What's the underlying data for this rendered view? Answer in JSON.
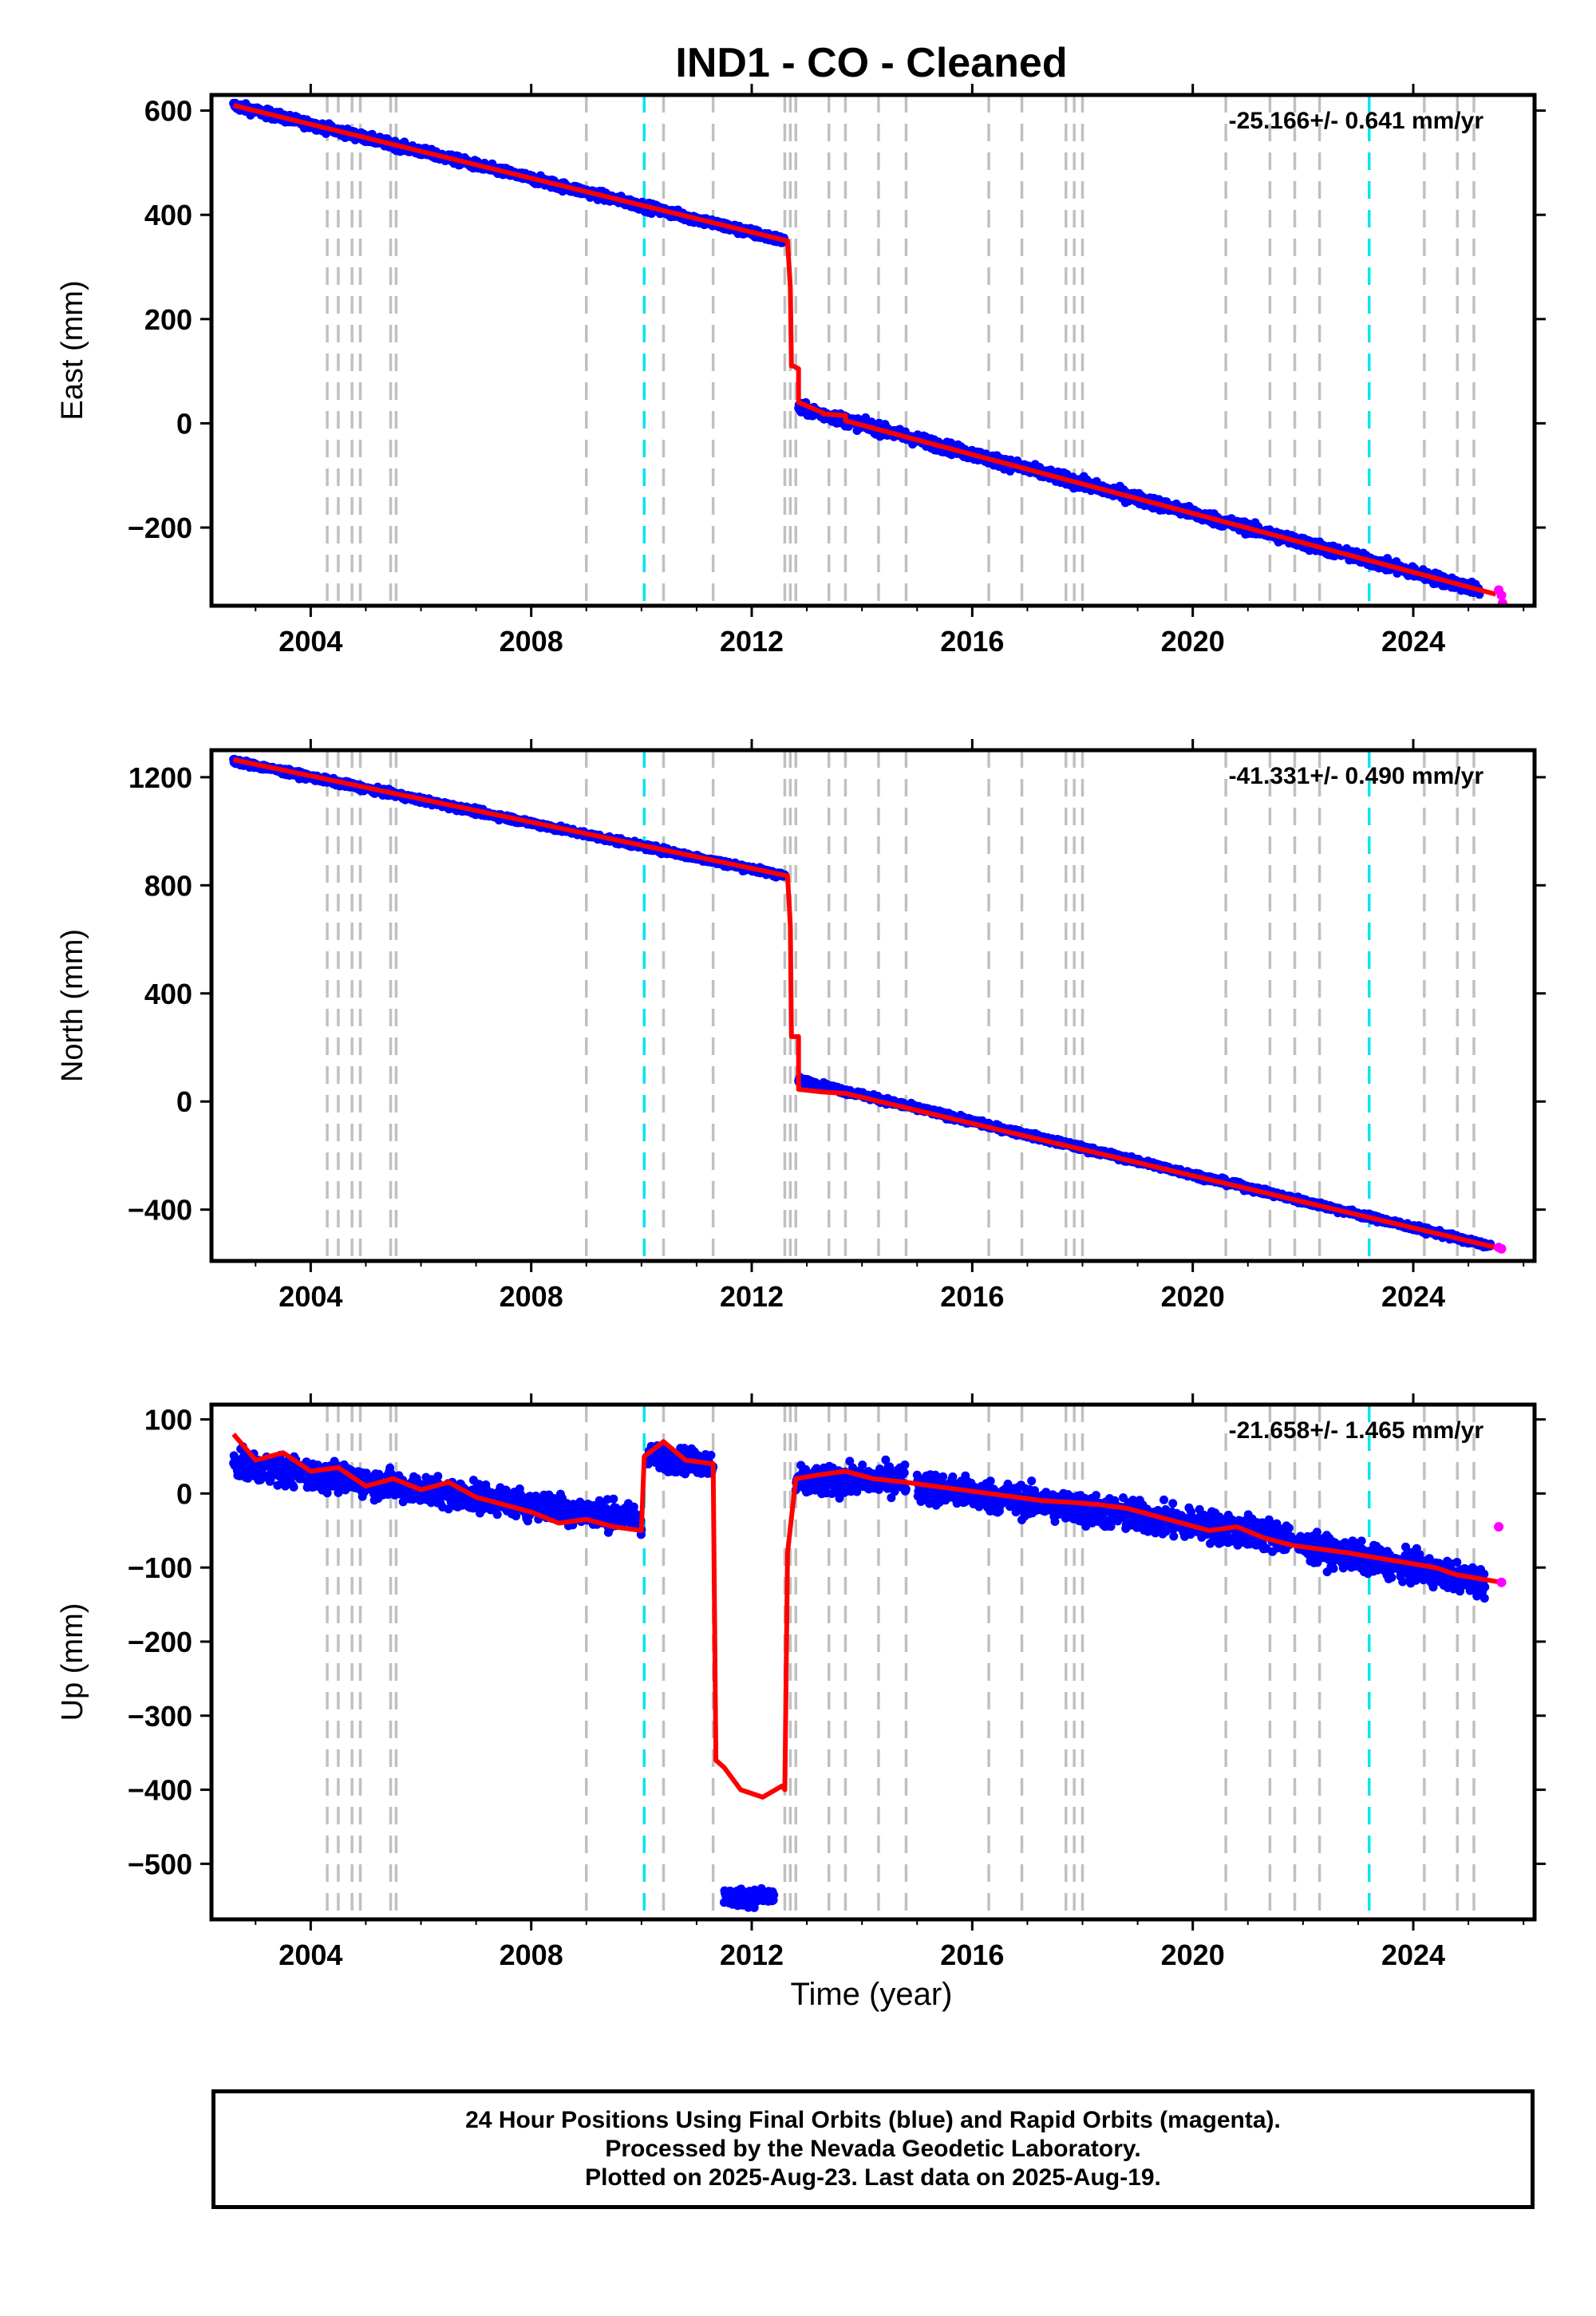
{
  "title": "IND1  - CO - Cleaned",
  "xlabel": "Time (year)",
  "footer": {
    "line1": "24 Hour Positions Using Final Orbits (blue) and Rapid Orbits (magenta).",
    "line2": "Processed by the Nevada Geodetic Laboratory.",
    "line3": "Plotted on 2025-Aug-23. Last data on 2025-Aug-19."
  },
  "colors": {
    "final_orbits": "#0000ff",
    "rapid_orbits": "#ff00ff",
    "model": "#ff0000",
    "steps_gray": "#c0c0c0",
    "steps_cyan": "#00e5ee"
  },
  "chart_data": [
    {
      "type": "scatter",
      "name": "east",
      "ylabel": "East (mm)",
      "rate_label": "-25.166+/- 0.641 mm/yr",
      "xlim": [
        2002.2,
        2026.2
      ],
      "ylim": [
        -350,
        630
      ],
      "xticks": [
        2004,
        2008,
        2012,
        2016,
        2020,
        2024
      ],
      "yticks": [
        -200,
        0,
        200,
        400,
        600
      ],
      "ytick_labels": [
        "−200",
        "0",
        "200",
        "400",
        "600"
      ],
      "gray_steps": [
        2004.3,
        2004.5,
        2004.75,
        2004.9,
        2005.45,
        2005.55,
        2009.0,
        2010.4,
        2011.3,
        2012.6,
        2012.7,
        2012.8,
        2013.4,
        2013.7,
        2014.3,
        2014.8,
        2016.3,
        2016.9,
        2017.7,
        2017.85,
        2018.0,
        2020.6,
        2021.4,
        2021.85,
        2022.3,
        2024.2,
        2024.8,
        2025.1
      ],
      "cyan_steps": [
        2010.05,
        2023.2
      ],
      "segments": [
        {
          "x0": 2002.6,
          "x1": 2012.6,
          "y0": 610,
          "y1": 350,
          "noise": 7
        },
        {
          "x0": 2012.85,
          "x1": 2025.2,
          "y0": 30,
          "y1": -320,
          "noise": 9
        }
      ],
      "model_line": {
        "x": [
          2002.6,
          2012.65,
          2012.65,
          2012.7,
          2012.72,
          2012.75,
          2012.75,
          2012.85,
          2012.85,
          2013.3,
          2013.3,
          2013.7,
          2013.7,
          2025.5
        ],
        "y": [
          610,
          350,
          350,
          260,
          110,
          110,
          110,
          105,
          40,
          20,
          18,
          15,
          5,
          -328
        ]
      },
      "rapid": {
        "x": [
          2025.55,
          2025.6,
          2025.62
        ],
        "y": [
          -320,
          -330,
          -345
        ]
      }
    },
    {
      "type": "scatter",
      "name": "north",
      "ylabel": "North (mm)",
      "rate_label": "-41.331+/- 0.490 mm/yr",
      "xlim": [
        2002.2,
        2026.2
      ],
      "ylim": [
        -590,
        1300
      ],
      "xticks": [
        2004,
        2008,
        2012,
        2016,
        2020,
        2024
      ],
      "yticks": [
        -400,
        0,
        400,
        800,
        1200
      ],
      "ytick_labels": [
        "−400",
        "0",
        "400",
        "800",
        "1200"
      ],
      "gray_steps": [
        2004.3,
        2004.5,
        2004.75,
        2004.9,
        2005.45,
        2005.55,
        2009.0,
        2010.4,
        2011.3,
        2012.6,
        2012.7,
        2012.8,
        2013.4,
        2013.7,
        2014.3,
        2014.8,
        2016.3,
        2016.9,
        2017.7,
        2017.85,
        2018.0,
        2020.6,
        2021.4,
        2021.85,
        2022.3,
        2024.2,
        2024.8,
        2025.1
      ],
      "cyan_steps": [
        2010.05,
        2023.2
      ],
      "segments": [
        {
          "x0": 2002.6,
          "x1": 2012.6,
          "y0": 1260,
          "y1": 835,
          "noise": 9
        },
        {
          "x0": 2012.85,
          "x1": 2025.4,
          "y0": 80,
          "y1": -535,
          "noise": 9
        }
      ],
      "model_line": {
        "x": [
          2002.6,
          2012.65,
          2012.65,
          2012.7,
          2012.72,
          2012.75,
          2012.75,
          2012.85,
          2012.85,
          2013.3,
          2013.7,
          2025.5
        ],
        "y": [
          1265,
          835,
          835,
          650,
          240,
          240,
          240,
          240,
          45,
          35,
          30,
          -540
        ]
      },
      "rapid": {
        "x": [
          2025.55,
          2025.6
        ],
        "y": [
          -540,
          -545
        ]
      }
    },
    {
      "type": "scatter",
      "name": "up",
      "ylabel": "Up (mm)",
      "rate_label": "-21.658+/- 1.465 mm/yr",
      "xlim": [
        2002.2,
        2026.2
      ],
      "ylim": [
        -575,
        120
      ],
      "xticks": [
        2004,
        2008,
        2012,
        2016,
        2020,
        2024
      ],
      "yticks": [
        -500,
        -400,
        -300,
        -200,
        -100,
        0,
        100
      ],
      "ytick_labels": [
        "−500",
        "−400",
        "−300",
        "−200",
        "−100",
        "0",
        "100"
      ],
      "gray_steps": [
        2004.3,
        2004.5,
        2004.75,
        2004.9,
        2005.45,
        2005.55,
        2009.0,
        2010.4,
        2011.3,
        2012.6,
        2012.7,
        2012.8,
        2013.4,
        2013.7,
        2014.3,
        2014.8,
        2016.3,
        2016.9,
        2017.7,
        2017.85,
        2018.0,
        2020.6,
        2021.4,
        2021.85,
        2022.3,
        2024.2,
        2024.8,
        2025.1
      ],
      "cyan_steps": [
        2010.05,
        2023.2
      ],
      "segments": [
        {
          "x0": 2002.6,
          "x1": 2010.0,
          "y0": 40,
          "y1": -35,
          "noise": 16
        },
        {
          "x0": 2010.1,
          "x1": 2011.3,
          "y0": 50,
          "y1": 40,
          "noise": 14
        },
        {
          "x0": 2011.5,
          "x1": 2012.4,
          "y0": -545,
          "y1": -545,
          "noise": 10
        },
        {
          "x0": 2012.8,
          "x1": 2014.8,
          "y0": 15,
          "y1": 20,
          "noise": 16
        },
        {
          "x0": 2015.0,
          "x1": 2021.8,
          "y0": 10,
          "y1": -60,
          "noise": 18
        },
        {
          "x0": 2021.9,
          "x1": 2025.3,
          "y0": -70,
          "y1": -120,
          "noise": 16
        }
      ],
      "model_line": {
        "x": [
          2002.6,
          2003.0,
          2003.5,
          2004.0,
          2004.5,
          2005.0,
          2005.5,
          2006.0,
          2006.5,
          2007.0,
          2007.5,
          2008.0,
          2008.5,
          2009.0,
          2009.5,
          2010.0,
          2010.05,
          2010.4,
          2010.8,
          2011.3,
          2011.35,
          2011.5,
          2011.8,
          2012.2,
          2012.55,
          2012.6,
          2012.65,
          2012.8,
          2013.2,
          2013.7,
          2014.2,
          2014.8,
          2015.3,
          2015.8,
          2016.3,
          2016.8,
          2017.3,
          2017.8,
          2018.3,
          2018.8,
          2019.3,
          2019.8,
          2020.3,
          2020.8,
          2021.3,
          2021.8,
          2022.3,
          2022.8,
          2023.2,
          2023.6,
          2024.0,
          2024.4,
          2024.8,
          2025.2,
          2025.6
        ],
        "y": [
          80,
          45,
          55,
          30,
          35,
          10,
          20,
          5,
          15,
          -5,
          -15,
          -25,
          -40,
          -35,
          -45,
          -50,
          50,
          70,
          45,
          40,
          -360,
          -370,
          -400,
          -410,
          -395,
          -400,
          -80,
          20,
          25,
          30,
          20,
          15,
          10,
          5,
          0,
          -5,
          -10,
          -12,
          -15,
          -20,
          -30,
          -40,
          -50,
          -45,
          -60,
          -70,
          -75,
          -80,
          -85,
          -90,
          -95,
          -100,
          -110,
          -115,
          -120
        ]
      },
      "rapid": {
        "x": [
          2025.55,
          2025.6
        ],
        "y": [
          -45,
          -120
        ]
      }
    }
  ]
}
